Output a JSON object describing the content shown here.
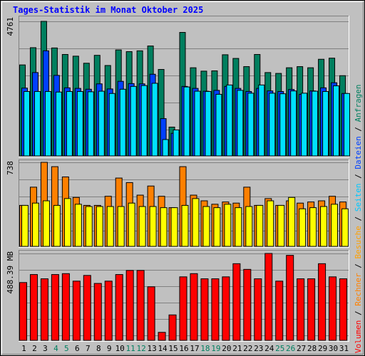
{
  "chart_data": {
    "type": "bar",
    "title": "Tages-Statistik im Monat Oktober 2025",
    "categories": [
      "1",
      "2",
      "3",
      "4",
      "5",
      "6",
      "7",
      "8",
      "9",
      "10",
      "11",
      "12",
      "13",
      "14",
      "15",
      "16",
      "17",
      "18",
      "19",
      "20",
      "21",
      "22",
      "23",
      "24",
      "25",
      "26",
      "27",
      "28",
      "29",
      "30",
      "31"
    ],
    "weekend_days": [
      "4",
      "5",
      "11",
      "12",
      "18",
      "19",
      "25",
      "26"
    ],
    "panels": [
      {
        "id": "top",
        "max_label": "4761",
        "ymax": 4761,
        "series": [
          {
            "name": "Anfragen",
            "color": "#007f5f",
            "values": [
              3220,
              3830,
              4761,
              3820,
              3590,
              3530,
              3280,
              3560,
              3200,
              3750,
              3690,
              3720,
              3890,
              3060,
              1020,
              4370,
              3120,
              3000,
              3010,
              3580,
              3450,
              3160,
              3590,
              2950,
              2920,
              3120,
              3160,
              3120,
              3420,
              3460,
              2840
            ]
          },
          {
            "name": "Dateien",
            "color": "#0040ff",
            "values": [
              2400,
              2950,
              3720,
              2850,
              2410,
              2390,
              2360,
              2550,
              2370,
              2640,
              2560,
              2550,
              2890,
              1320,
              800,
              2460,
              2390,
              2290,
              2320,
              2460,
              2390,
              2280,
              2390,
              2300,
              2280,
              2350,
              2180,
              2300,
              2410,
              2590,
              2210
            ]
          },
          {
            "name": "Seiten",
            "color": "#00e0ff",
            "values": [
              2280,
              2280,
              2280,
              2260,
              2280,
              2280,
              2270,
              2290,
              2210,
              2360,
              2460,
              2490,
              2570,
              580,
              920,
              2440,
              2290,
              2280,
              2180,
              2510,
              2320,
              2220,
              2510,
              2220,
              2200,
              2300,
              2220,
              2290,
              2280,
              2480,
              2210
            ]
          }
        ]
      },
      {
        "id": "middle",
        "max_label": "738",
        "ymax": 738,
        "series": [
          {
            "name": "Besuche",
            "color": "#ff8000",
            "values": [
              360,
              520,
              738,
              700,
              610,
              430,
              360,
              360,
              440,
              600,
              560,
              450,
              530,
              440,
              340,
              700,
              450,
              400,
              370,
              390,
              380,
              520,
              360,
              420,
              360,
              400,
              380,
              390,
              400,
              440,
              390
            ]
          },
          {
            "name": "Rechner",
            "color": "#ffff00",
            "values": [
              360,
              380,
              400,
              360,
              420,
              370,
              350,
              350,
              350,
              350,
              380,
              350,
              350,
              340,
              340,
              360,
              420,
              350,
              340,
              370,
              340,
              350,
              360,
              400,
              360,
              430,
              330,
              340,
              350,
              370,
              330
            ]
          }
        ]
      },
      {
        "id": "bottom",
        "max_label": "488.39 MB",
        "ymax": 488.39,
        "series": [
          {
            "name": "Volumen",
            "color": "#ff0000",
            "values": [
              325,
              370,
              346,
              370,
              375,
              333,
              365,
              320,
              333,
              370,
              393,
              393,
              301,
              45,
              143,
              357,
              375,
              346,
              346,
              357,
              431,
              399,
              346,
              488.39,
              333,
              478,
              346,
              346,
              431,
              357,
              346
            ]
          }
        ]
      }
    ],
    "right_legend": [
      {
        "text": "Volumen",
        "color": "#ff0000"
      },
      {
        "text": " / ",
        "color": "#000000"
      },
      {
        "text": "Rechner",
        "color": "#ff8000"
      },
      {
        "text": " / ",
        "color": "#000000"
      },
      {
        "text": "Besuche",
        "color": "#ffa000"
      },
      {
        "text": " / ",
        "color": "#000000"
      },
      {
        "text": "Seiten",
        "color": "#00c8ff"
      },
      {
        "text": " / ",
        "color": "#000000"
      },
      {
        "text": "Dateien",
        "color": "#0040ff"
      },
      {
        "text": " / ",
        "color": "#000000"
      },
      {
        "text": "Anfragen",
        "color": "#007f5f"
      }
    ],
    "colors": {
      "weekday_label": "#000000",
      "weekend_label": "#007f5f"
    }
  }
}
